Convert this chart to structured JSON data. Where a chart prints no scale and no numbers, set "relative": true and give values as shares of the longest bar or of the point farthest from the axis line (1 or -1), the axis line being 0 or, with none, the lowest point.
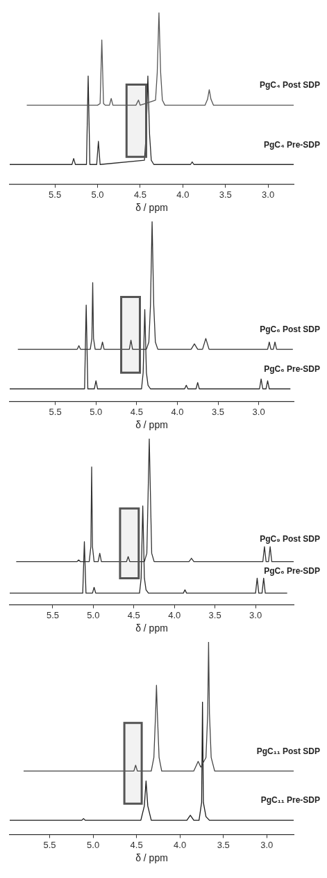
{
  "chart_data": [
    {
      "type": "line",
      "relative": true,
      "xlabel": "δ / ppm",
      "xlim": [
        6.03,
        2.7
      ],
      "xticks": [
        5.5,
        {
          "value": 5,
          "label": "5.0"
        },
        4.5,
        {
          "value": 4,
          "label": "4.0"
        },
        3.5,
        {
          "value": 3,
          "label": "3.0"
        }
      ],
      "bands": [
        {
          "axis": "x",
          "from": 4.66,
          "to": 4.43,
          "color": "#555555"
        }
      ],
      "series": [
        {
          "name": "PgC₄ Post SDP",
          "color": "#555555",
          "x": [
            5.83,
            5.0,
            4.97,
            4.95,
            4.93,
            4.91,
            4.86,
            4.84,
            4.82,
            4.55,
            4.52,
            4.5,
            4.32,
            4.3,
            4.28,
            4.26,
            4.24,
            4.21,
            3.74,
            3.71,
            3.69,
            3.67,
            3.64,
            2.7
          ],
          "values": [
            0.46,
            0.46,
            0.47,
            0.84,
            0.47,
            0.46,
            0.46,
            0.5,
            0.46,
            0.46,
            0.49,
            0.46,
            0.49,
            0.65,
            1.0,
            0.65,
            0.49,
            0.46,
            0.46,
            0.495,
            0.55,
            0.495,
            0.46,
            0.46
          ]
        },
        {
          "name": "PgC₄ Pre-SDP",
          "color": "#2a2a2a",
          "x": [
            6.03,
            5.3,
            5.28,
            5.26,
            5.13,
            5.11,
            5.09,
            5.01,
            4.99,
            4.97,
            4.45,
            4.43,
            4.41,
            4.39,
            4.37,
            4.34,
            3.91,
            3.89,
            3.87,
            2.7
          ],
          "values": [
            0.115,
            0.115,
            0.15,
            0.115,
            0.115,
            0.63,
            0.115,
            0.115,
            0.25,
            0.115,
            0.14,
            0.29,
            0.63,
            0.29,
            0.14,
            0.115,
            0.115,
            0.13,
            0.115,
            0.115
          ]
        }
      ]
    },
    {
      "type": "line",
      "relative": true,
      "xlabel": "δ / ppm",
      "xlim": [
        6.06,
        2.57
      ],
      "xticks": [
        5.5,
        {
          "value": 5,
          "label": "5.0"
        },
        4.5,
        {
          "value": 4,
          "label": "4.0"
        },
        3.5,
        {
          "value": 3,
          "label": "3.0"
        }
      ],
      "bands": [
        {
          "axis": "x",
          "from": 4.69,
          "to": 4.46,
          "color": "#555555"
        }
      ],
      "series": [
        {
          "name": "PgC₆ Post SDP",
          "color": "#333333",
          "x": [
            5.96,
            5.23,
            5.21,
            5.19,
            5.07,
            5.05,
            5.04,
            5.03,
            5.01,
            4.94,
            4.92,
            4.9,
            4.59,
            4.57,
            4.55,
            4.38,
            4.35,
            4.33,
            4.31,
            4.29,
            4.27,
            4.24,
            3.83,
            3.79,
            3.75,
            3.69,
            3.65,
            3.61,
            2.89,
            2.87,
            2.85,
            2.82,
            2.8,
            2.78,
            2.58
          ],
          "values": [
            0.29,
            0.29,
            0.31,
            0.29,
            0.29,
            0.35,
            0.66,
            0.35,
            0.29,
            0.29,
            0.33,
            0.29,
            0.29,
            0.34,
            0.29,
            0.29,
            0.33,
            0.535,
            1.0,
            0.535,
            0.33,
            0.29,
            0.29,
            0.32,
            0.29,
            0.29,
            0.35,
            0.29,
            0.29,
            0.33,
            0.29,
            0.29,
            0.33,
            0.29,
            0.29
          ]
        },
        {
          "name": "PgC₆ Pre-SDP",
          "color": "#2a2a2a",
          "x": [
            6.06,
            5.14,
            5.12,
            5.1,
            5.02,
            5.0,
            4.98,
            4.44,
            4.42,
            4.4,
            4.38,
            4.36,
            4.33,
            3.91,
            3.89,
            3.87,
            3.77,
            3.75,
            3.73,
            2.99,
            2.97,
            2.95,
            2.91,
            2.89,
            2.87,
            2.61
          ],
          "values": [
            0.07,
            0.07,
            0.535,
            0.07,
            0.07,
            0.115,
            0.07,
            0.07,
            0.16,
            0.51,
            0.16,
            0.09,
            0.07,
            0.07,
            0.09,
            0.07,
            0.07,
            0.105,
            0.07,
            0.07,
            0.125,
            0.07,
            0.07,
            0.115,
            0.07,
            0.07
          ]
        }
      ]
    },
    {
      "type": "line",
      "relative": true,
      "xlabel": "δ / ppm",
      "xlim": [
        6.03,
        2.53
      ],
      "xticks": [
        5.5,
        {
          "value": 5,
          "label": "5.0"
        },
        4.5,
        {
          "value": 4,
          "label": "4.0"
        },
        3.5,
        {
          "value": 3,
          "label": "3.0"
        }
      ],
      "bands": [
        {
          "axis": "x",
          "from": 4.67,
          "to": 4.44,
          "color": "#555555"
        }
      ],
      "series": [
        {
          "name": "PgC₉ Post SDP",
          "color": "#333333",
          "x": [
            5.95,
            5.2,
            5.18,
            5.16,
            5.05,
            5.03,
            5.02,
            5.01,
            4.99,
            4.94,
            4.92,
            4.9,
            4.59,
            4.57,
            4.55,
            4.37,
            4.34,
            4.33,
            4.31,
            4.29,
            4.28,
            4.25,
            3.82,
            3.79,
            3.76,
            2.91,
            2.89,
            2.87,
            2.84,
            2.82,
            2.8,
            2.53
          ],
          "values": [
            0.26,
            0.26,
            0.27,
            0.26,
            0.26,
            0.35,
            0.83,
            0.35,
            0.26,
            0.26,
            0.31,
            0.26,
            0.26,
            0.29,
            0.26,
            0.26,
            0.31,
            0.535,
            1.0,
            0.535,
            0.31,
            0.26,
            0.26,
            0.28,
            0.26,
            0.26,
            0.35,
            0.26,
            0.26,
            0.35,
            0.26,
            0.26
          ]
        },
        {
          "name": "PgC₆ Pre-SDP",
          "color": "#2a2a2a",
          "x": [
            6.03,
            5.13,
            5.11,
            5.09,
            5.01,
            4.99,
            4.97,
            4.43,
            4.41,
            4.39,
            4.37,
            4.35,
            4.32,
            3.89,
            3.87,
            3.85,
            3.0,
            2.98,
            2.96,
            2.92,
            2.9,
            2.88,
            2.61
          ],
          "values": [
            0.07,
            0.07,
            0.38,
            0.07,
            0.07,
            0.105,
            0.07,
            0.07,
            0.16,
            0.595,
            0.16,
            0.09,
            0.07,
            0.07,
            0.09,
            0.07,
            0.07,
            0.16,
            0.07,
            0.07,
            0.16,
            0.07,
            0.07
          ]
        }
      ]
    },
    {
      "type": "line",
      "relative": true,
      "xlabel": "δ / ppm",
      "xlim": [
        5.96,
        2.69
      ],
      "xticks": [
        5.5,
        {
          "value": 5,
          "label": "5.0"
        },
        4.5,
        {
          "value": 4,
          "label": "4.0"
        },
        3.5,
        {
          "value": 3,
          "label": "3.0"
        }
      ],
      "bands": [
        {
          "axis": "x",
          "from": 4.64,
          "to": 4.44,
          "color": "#555555"
        }
      ],
      "series": [
        {
          "name": "PgC₁₁ Post SDP",
          "color": "#444444",
          "x": [
            5.8,
            4.53,
            4.51,
            4.49,
            4.33,
            4.3,
            4.28,
            4.27,
            4.26,
            4.24,
            4.21,
            3.84,
            3.79,
            3.76,
            3.7,
            3.68,
            3.67,
            3.66,
            3.64,
            3.6,
            2.69
          ],
          "values": [
            0.33,
            0.33,
            0.36,
            0.33,
            0.33,
            0.4,
            0.63,
            0.775,
            0.63,
            0.4,
            0.33,
            0.33,
            0.38,
            0.35,
            0.4,
            0.63,
            1.0,
            0.63,
            0.4,
            0.33,
            0.33
          ]
        },
        {
          "name": "PgC₁₁ Pre-SDP",
          "color": "#1a1a1a",
          "x": [
            5.96,
            5.13,
            5.11,
            5.09,
            4.45,
            4.41,
            4.39,
            4.37,
            4.33,
            3.92,
            3.88,
            3.84,
            3.78,
            3.75,
            3.74,
            3.73,
            3.7,
            3.66,
            2.69
          ],
          "values": [
            0.074,
            0.074,
            0.083,
            0.074,
            0.074,
            0.148,
            0.278,
            0.148,
            0.074,
            0.074,
            0.1,
            0.074,
            0.074,
            0.167,
            0.688,
            0.167,
            0.093,
            0.074,
            0.074
          ]
        }
      ]
    }
  ]
}
